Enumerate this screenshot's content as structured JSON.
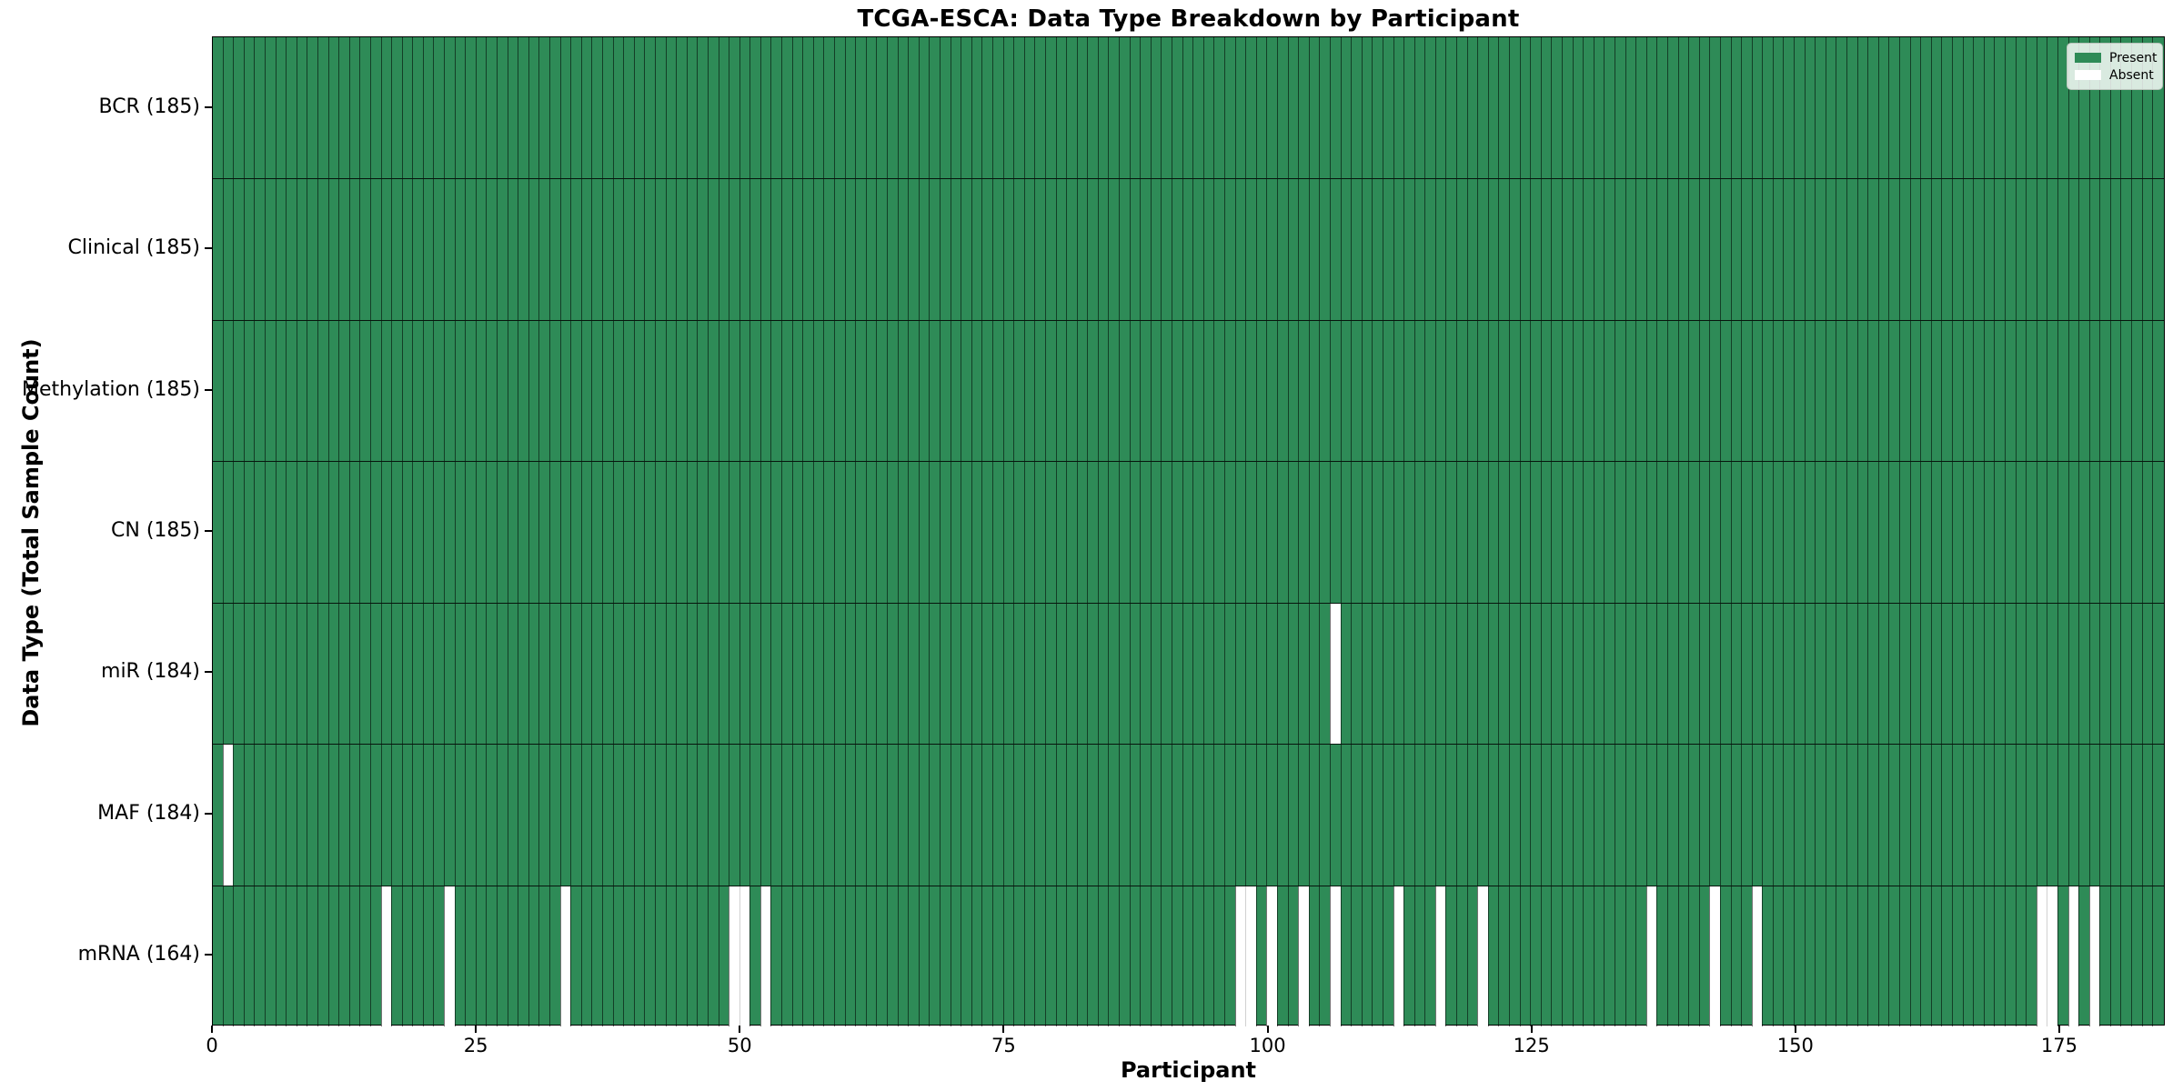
{
  "chart_data": {
    "type": "heatmap",
    "title": "TCGA-ESCA: Data Type Breakdown by Participant",
    "xlabel": "Participant",
    "ylabel": "Data Type (Total Sample Count)",
    "n_participants": 185,
    "x_ticks": [
      0,
      25,
      50,
      75,
      100,
      125,
      150,
      175
    ],
    "grid": "per-cell vertical dividers, horizontal row separators",
    "legend_position": "upper right inside axes",
    "legend": {
      "present_label": "Present",
      "absent_label": "Absent"
    },
    "colors": {
      "present": "#2e8b57",
      "absent": "#ffffff",
      "cell_edge": "rgba(0,0,0,0.55)",
      "axes_edge": "#000000"
    },
    "rows": [
      {
        "label": "BCR (185)",
        "name": "BCR",
        "total": 185,
        "absent_participants": []
      },
      {
        "label": "Clinical (185)",
        "name": "Clinical",
        "total": 185,
        "absent_participants": []
      },
      {
        "label": "Methylation (185)",
        "name": "Methylation",
        "total": 185,
        "absent_participants": []
      },
      {
        "label": "CN (185)",
        "name": "CN",
        "total": 185,
        "absent_participants": []
      },
      {
        "label": "miR (184)",
        "name": "miR",
        "total": 184,
        "absent_participants": [
          106
        ]
      },
      {
        "label": "MAF (184)",
        "name": "MAF",
        "total": 184,
        "absent_participants": [
          1
        ]
      },
      {
        "label": "mRNA (164)",
        "name": "mRNA",
        "total": 164,
        "absent_participants": [
          16,
          22,
          33,
          49,
          50,
          52,
          97,
          98,
          100,
          103,
          106,
          112,
          116,
          120,
          136,
          142,
          146,
          173,
          174,
          176,
          178
        ]
      }
    ]
  }
}
